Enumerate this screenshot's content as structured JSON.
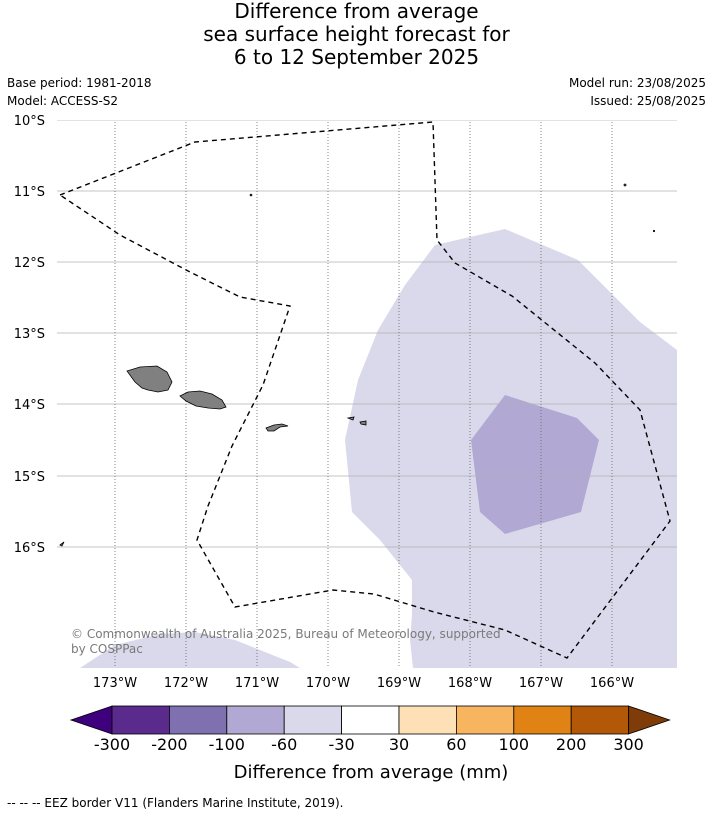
{
  "title": {
    "line1": "Difference from average",
    "line2": "sea surface height forecast for",
    "line3": "6 to 12 September 2025"
  },
  "meta": {
    "base_period": "Base period: 1981-2018",
    "model": "Model: ACCESS-S2",
    "model_run": "Model run: 23/08/2025",
    "issued": "Issued: 25/08/2025"
  },
  "map": {
    "lat_labels": [
      "10°S",
      "11°S",
      "12°S",
      "13°S",
      "14°S",
      "15°S",
      "16°S"
    ],
    "lon_labels": [
      "173°W",
      "172°W",
      "171°W",
      "170°W",
      "169°W",
      "168°W",
      "167°W",
      "166°W"
    ],
    "copyright_line1": "© Commonwealth of Australia 2025, Bureau of Meteorology, supported",
    "copyright_line2": "by COSPPac",
    "colors": {
      "land": "#808080",
      "band_neg60_neg30": "#d9d9eb",
      "band_neg100_neg60": "#b1a9d3",
      "grid": "#b0b0b0",
      "eez": "#000000"
    }
  },
  "colorbar": {
    "title": "Difference from average (mm)",
    "tick_labels": [
      "-300",
      "-200",
      "-100",
      "-60",
      "-30",
      "30",
      "60",
      "100",
      "200",
      "300"
    ],
    "colors": [
      "#3f007d",
      "#5a2a8c",
      "#7f71b0",
      "#b1a9d3",
      "#d9d9eb",
      "#ffffff",
      "#fee0b6",
      "#f8b55f",
      "#e08214",
      "#b35806",
      "#7f3b08"
    ]
  },
  "footnote": "--  --  -- EEZ border V11 (Flanders Marine Institute, 2019)."
}
